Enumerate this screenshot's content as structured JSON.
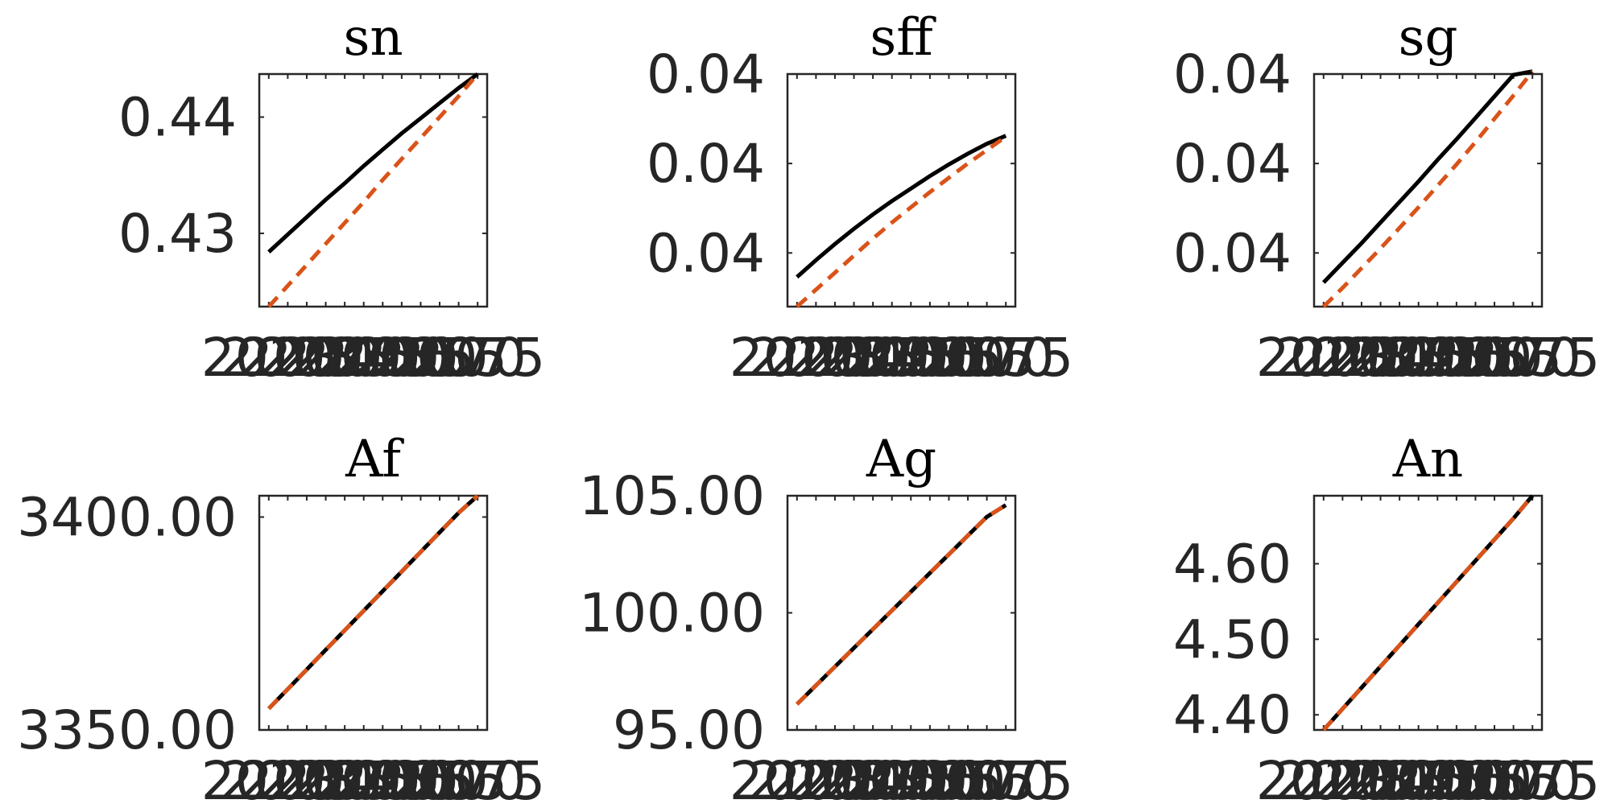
{
  "figure": {
    "background": "#ffffff"
  },
  "chart_data": [
    {
      "type": "line",
      "title": "sn",
      "xlabel": "",
      "ylabel": "",
      "x": [
        2020,
        2025,
        2030,
        2035,
        2040,
        2045,
        2050,
        2055,
        2060,
        2065,
        2070,
        2075
      ],
      "xticklabels": [
        "2020",
        "2025",
        "2030",
        "2035",
        "2040",
        "2045",
        "2050",
        "2055",
        "2060",
        "2065",
        "2070",
        "2075"
      ],
      "ylim": [
        0.4237,
        0.4437
      ],
      "yticks": [
        0.43,
        0.44
      ],
      "yticklabels": [
        "0.43",
        "0.44"
      ],
      "series": [
        {
          "color": "#000000",
          "dash": "solid",
          "values": [
            0.4284,
            0.4299,
            0.4314,
            0.4329,
            0.4343,
            0.4358,
            0.4372,
            0.4386,
            0.4399,
            0.4412,
            0.4425,
            0.4437
          ]
        },
        {
          "color": "#d95319",
          "dash": "dashed",
          "values": [
            0.4237,
            0.4255,
            0.4273,
            0.4291,
            0.4309,
            0.4327,
            0.4346,
            0.4364,
            0.4382,
            0.44,
            0.4418,
            0.4437
          ]
        }
      ]
    },
    {
      "type": "line",
      "title": "sff",
      "xlabel": "",
      "ylabel": "",
      "x": [
        2020,
        2025,
        2030,
        2035,
        2040,
        2045,
        2050,
        2055,
        2060,
        2065,
        2070,
        2075
      ],
      "xticklabels": [
        "2020",
        "2025",
        "2030",
        "2035",
        "2040",
        "2045",
        "2050",
        "2055",
        "2060",
        "2065",
        "2070",
        "2075"
      ],
      "ylim": [
        0.037,
        0.0396
      ],
      "yticks": [
        0.0376,
        0.0386,
        0.0396
      ],
      "yticklabels": [
        "0.04",
        "0.04",
        "0.04"
      ],
      "series": [
        {
          "color": "#000000",
          "dash": "solid",
          "values": [
            0.03733,
            0.03752,
            0.0377,
            0.03787,
            0.03803,
            0.03818,
            0.03832,
            0.03846,
            0.03859,
            0.03871,
            0.03882,
            0.03891
          ]
        },
        {
          "color": "#d95319",
          "dash": "dashed",
          "values": [
            0.037,
            0.03719,
            0.03738,
            0.03757,
            0.03776,
            0.03794,
            0.03811,
            0.03828,
            0.03844,
            0.0386,
            0.03875,
            0.0389
          ]
        }
      ]
    },
    {
      "type": "line",
      "title": "sg",
      "xlabel": "",
      "ylabel": "",
      "x": [
        2020,
        2025,
        2030,
        2035,
        2040,
        2045,
        2050,
        2055,
        2060,
        2065,
        2070,
        2075
      ],
      "xticklabels": [
        "2020",
        "2025",
        "2030",
        "2035",
        "2040",
        "2045",
        "2050",
        "2055",
        "2060",
        "2065",
        "2070",
        "2075"
      ],
      "ylim": [
        0.037,
        0.0396
      ],
      "yticks": [
        0.0376,
        0.0386,
        0.0396
      ],
      "yticklabels": [
        "0.04",
        "0.04",
        "0.04"
      ],
      "series": [
        {
          "color": "#000000",
          "dash": "solid",
          "values": [
            0.03727,
            0.03749,
            0.03771,
            0.03794,
            0.03817,
            0.0384,
            0.03864,
            0.03887,
            0.03911,
            0.03935,
            0.03959,
            0.03963
          ]
        },
        {
          "color": "#d95319",
          "dash": "dashed",
          "values": [
            0.037,
            0.03721,
            0.03743,
            0.03765,
            0.03788,
            0.03811,
            0.03835,
            0.03859,
            0.03884,
            0.0391,
            0.03936,
            0.03963
          ]
        }
      ]
    },
    {
      "type": "line",
      "title": "Af",
      "xlabel": "",
      "ylabel": "",
      "x": [
        2020,
        2025,
        2030,
        2035,
        2040,
        2045,
        2050,
        2055,
        2060,
        2065,
        2070,
        2075
      ],
      "xticklabels": [
        "2020",
        "2025",
        "2030",
        "2035",
        "2040",
        "2045",
        "2050",
        "2055",
        "2060",
        "2065",
        "2070",
        "2075"
      ],
      "ylim": [
        3350,
        3405
      ],
      "yticks": [
        3350,
        3400
      ],
      "yticklabels": [
        "3350.00",
        "3400.00"
      ],
      "series": [
        {
          "color": "#000000",
          "dash": "solid",
          "values": [
            3355.0,
            3359.6,
            3364.2,
            3368.8,
            3373.4,
            3378.0,
            3382.6,
            3387.2,
            3391.8,
            3396.4,
            3401.0,
            3405.0
          ]
        },
        {
          "color": "#d95319",
          "dash": "dashed",
          "values": [
            3355.0,
            3359.6,
            3364.2,
            3368.8,
            3373.4,
            3378.0,
            3382.6,
            3387.2,
            3391.8,
            3396.4,
            3401.0,
            3405.0
          ]
        }
      ]
    },
    {
      "type": "line",
      "title": "Ag",
      "xlabel": "",
      "ylabel": "",
      "x": [
        2020,
        2025,
        2030,
        2035,
        2040,
        2045,
        2050,
        2055,
        2060,
        2065,
        2070,
        2075
      ],
      "xticklabels": [
        "2020",
        "2025",
        "2030",
        "2035",
        "2040",
        "2045",
        "2050",
        "2055",
        "2060",
        "2065",
        "2070",
        "2075"
      ],
      "ylim": [
        95,
        105
      ],
      "yticks": [
        95,
        100,
        105
      ],
      "yticklabels": [
        "95.00",
        "100.00",
        "105.00"
      ],
      "series": [
        {
          "color": "#000000",
          "dash": "solid",
          "values": [
            96.1,
            96.9,
            97.7,
            98.5,
            99.3,
            100.1,
            100.9,
            101.7,
            102.5,
            103.3,
            104.1,
            104.6
          ]
        },
        {
          "color": "#d95319",
          "dash": "dashed",
          "values": [
            96.1,
            96.9,
            97.7,
            98.5,
            99.3,
            100.1,
            100.9,
            101.7,
            102.5,
            103.3,
            104.1,
            104.6
          ]
        }
      ]
    },
    {
      "type": "line",
      "title": "An",
      "xlabel": "",
      "ylabel": "",
      "x": [
        2020,
        2025,
        2030,
        2035,
        2040,
        2045,
        2050,
        2055,
        2060,
        2065,
        2070,
        2075
      ],
      "xticklabels": [
        "2020",
        "2025",
        "2030",
        "2035",
        "2040",
        "2045",
        "2050",
        "2055",
        "2060",
        "2065",
        "2070",
        "2075"
      ],
      "ylim": [
        4.38,
        4.69
      ],
      "yticks": [
        4.4,
        4.5,
        4.6
      ],
      "yticklabels": [
        "4.40",
        "4.50",
        "4.60"
      ],
      "series": [
        {
          "color": "#000000",
          "dash": "solid",
          "values": [
            4.38,
            4.408,
            4.436,
            4.464,
            4.492,
            4.52,
            4.548,
            4.576,
            4.604,
            4.632,
            4.66,
            4.69
          ]
        },
        {
          "color": "#d95319",
          "dash": "dashed",
          "values": [
            4.38,
            4.408,
            4.436,
            4.464,
            4.492,
            4.52,
            4.548,
            4.576,
            4.604,
            4.632,
            4.66,
            4.69
          ]
        }
      ]
    }
  ]
}
